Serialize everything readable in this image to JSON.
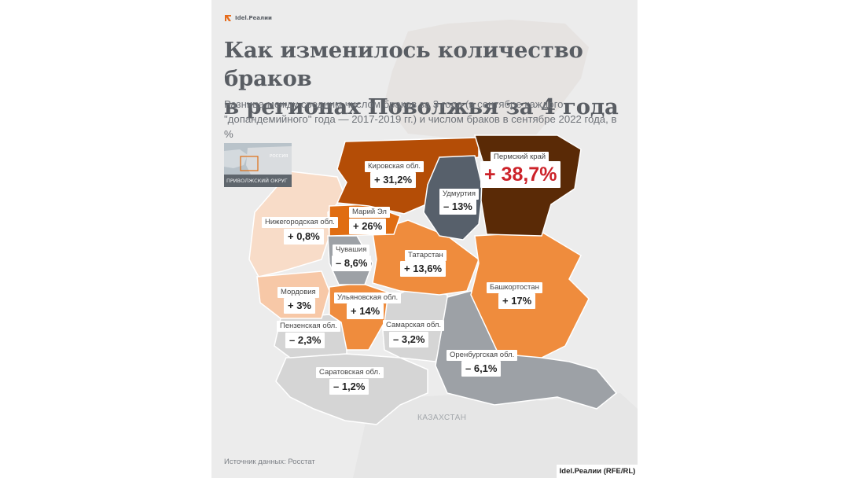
{
  "brand": {
    "logo_text": "Idel.Реалии",
    "credit": "Idel.Реалии (RFE/RL)"
  },
  "title": "Как изменилось количество браков\nв регионах Поволжья за 4 года",
  "subtitle": "Разница между средним числом браков за 3 года (в сентябре каждого \"допандемийного\" года — 2017-2019 гг.) и числом браков в сентябре 2022 года, в %",
  "inset": {
    "label": "ПРИВОЛЖСКИЙ ОКРУГ",
    "country": "РОССИЯ"
  },
  "neighbor_label": "КАЗАХСТАН",
  "source": "Источник данных: Росстат",
  "colors": {
    "strong_positive": "#5a2a06",
    "high_positive": "#b44d06",
    "mid_high_positive": "#e06d12",
    "mid_positive": "#ef8c3d",
    "low_positive": "#f7c8a7",
    "near_zero": "#f8dcc8",
    "light_negative": "#d5d5d5",
    "mid_negative": "#9da1a6",
    "strong_negative": "#57606b",
    "highlight_text": "#cc2229"
  },
  "regions": [
    {
      "name": "Пермский край",
      "value_text": "+ 38,7%",
      "value": 38.7
    },
    {
      "name": "Кировская обл.",
      "value_text": "+ 31,2%",
      "value": 31.2
    },
    {
      "name": "Удмуртия",
      "value_text": "– 13%",
      "value": -13
    },
    {
      "name": "Марий Эл",
      "value_text": "+ 26%",
      "value": 26
    },
    {
      "name": "Нижегородская обл.",
      "value_text": "+ 0,8%",
      "value": 0.8
    },
    {
      "name": "Чувашия",
      "value_text": "– 8,6%",
      "value": -8.6
    },
    {
      "name": "Татарстан",
      "value_text": "+ 13,6%",
      "value": 13.6
    },
    {
      "name": "Башкортостан",
      "value_text": "+ 17%",
      "value": 17
    },
    {
      "name": "Мордовия",
      "value_text": "+ 3%",
      "value": 3
    },
    {
      "name": "Ульяновская обл.",
      "value_text": "+ 14%",
      "value": 14
    },
    {
      "name": "Пензенская обл.",
      "value_text": "– 2,3%",
      "value": -2.3
    },
    {
      "name": "Самарская обл.",
      "value_text": "– 3,2%",
      "value": -3.2
    },
    {
      "name": "Оренбургская обл.",
      "value_text": "– 6,1%",
      "value": -6.1
    },
    {
      "name": "Саратовская обл.",
      "value_text": "– 1,2%",
      "value": -1.2
    }
  ]
}
